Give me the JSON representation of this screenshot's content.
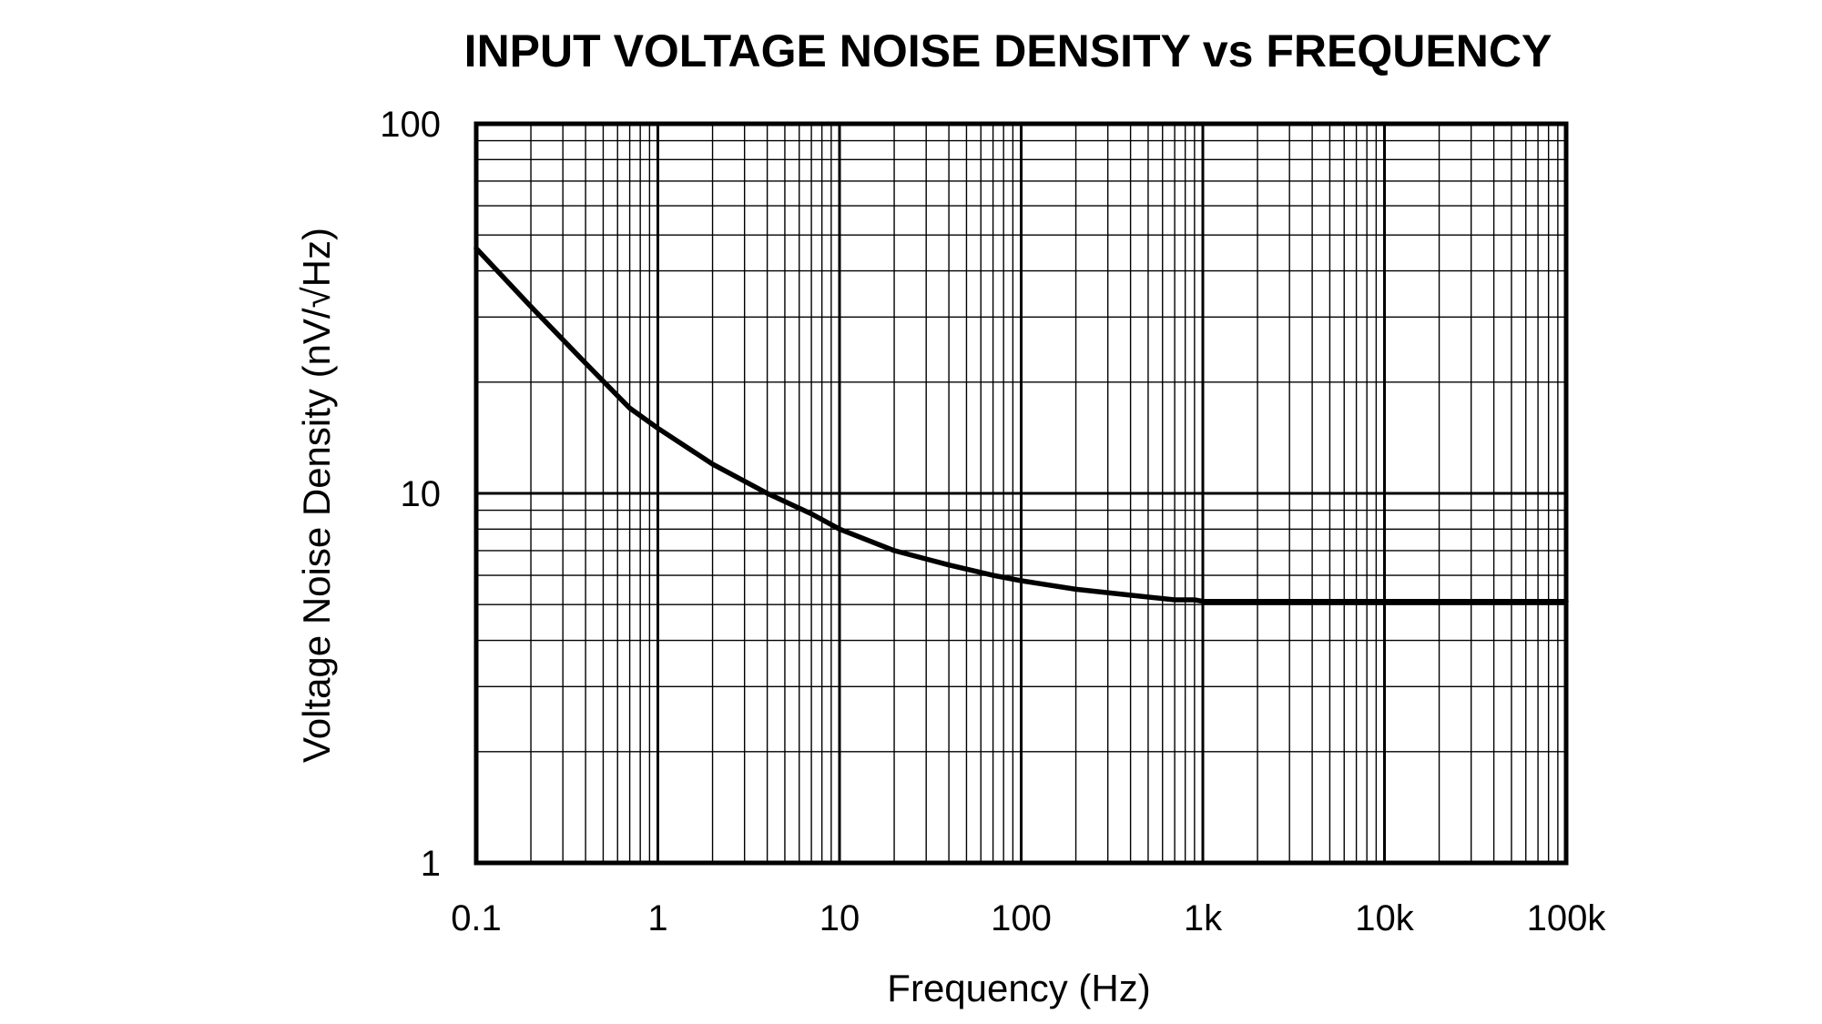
{
  "chart_data": {
    "type": "line",
    "title": "INPUT VOLTAGE NOISE DENSITY vs FREQUENCY",
    "xlabel": "Frequency (Hz)",
    "ylabel": "Voltage Noise Density (nV/√Hz)",
    "x_scale": "log",
    "y_scale": "log",
    "xlim": [
      0.1,
      100000
    ],
    "ylim": [
      1,
      100
    ],
    "grid": true,
    "x_ticks": [
      {
        "value": 0.1,
        "label": "0.1"
      },
      {
        "value": 1,
        "label": "1"
      },
      {
        "value": 10,
        "label": "10"
      },
      {
        "value": 100,
        "label": "100"
      },
      {
        "value": 1000,
        "label": "1k"
      },
      {
        "value": 10000,
        "label": "10k"
      },
      {
        "value": 100000,
        "label": "100k"
      }
    ],
    "y_ticks": [
      {
        "value": 1,
        "label": "1"
      },
      {
        "value": 10,
        "label": "10"
      },
      {
        "value": 100,
        "label": "100"
      }
    ],
    "series": [
      {
        "color": "#000000",
        "x": [
          0.1,
          0.2,
          0.4,
          0.7,
          1,
          2,
          4,
          7,
          10,
          20,
          40,
          70,
          100,
          200,
          400,
          700,
          900,
          1000,
          10000,
          100000
        ],
        "y": [
          46,
          32,
          22.5,
          17,
          15,
          12,
          10,
          8.8,
          8,
          7,
          6.4,
          6,
          5.8,
          5.5,
          5.3,
          5.15,
          5.15,
          5.1,
          5.1,
          5.1
        ]
      }
    ]
  }
}
